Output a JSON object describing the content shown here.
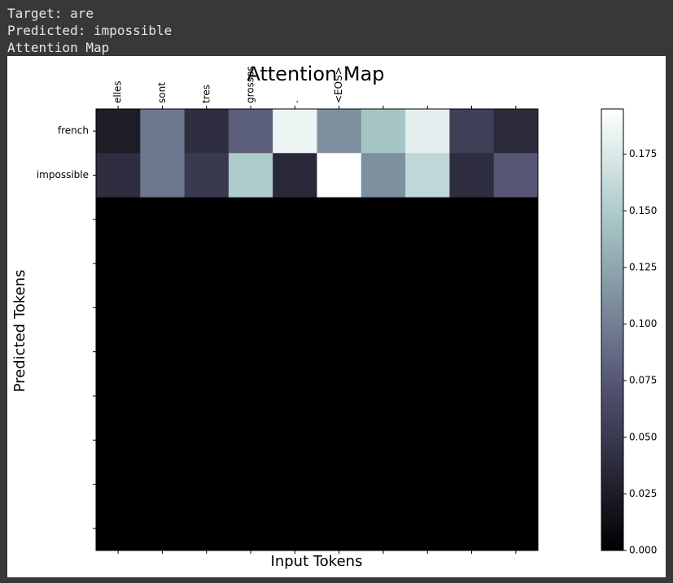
{
  "output": {
    "lines": [
      "Target: are",
      "Predicted: impossible",
      "Attention Map"
    ]
  },
  "chart_data": {
    "type": "heatmap",
    "title": "Attention Map",
    "x_label": "Input Tokens",
    "y_label": "Predicted Tokens",
    "x_categories": [
      "elles",
      "sont",
      "tres",
      "grosses",
      ".",
      "<EOS>",
      null,
      null,
      null,
      null
    ],
    "y_categories": [
      "french",
      "impossible",
      null,
      null,
      null,
      null,
      null,
      null,
      null,
      null
    ],
    "z": [
      [
        0.025,
        0.095,
        0.04,
        0.08,
        0.185,
        0.11,
        0.145,
        0.18,
        0.055,
        0.038
      ],
      [
        0.04,
        0.095,
        0.05,
        0.15,
        0.035,
        0.195,
        0.11,
        0.16,
        0.04,
        0.075
      ],
      [
        0,
        0,
        0,
        0,
        0,
        0,
        0,
        0,
        0,
        0
      ],
      [
        0,
        0,
        0,
        0,
        0,
        0,
        0,
        0,
        0,
        0
      ],
      [
        0,
        0,
        0,
        0,
        0,
        0,
        0,
        0,
        0,
        0
      ],
      [
        0,
        0,
        0,
        0,
        0,
        0,
        0,
        0,
        0,
        0
      ],
      [
        0,
        0,
        0,
        0,
        0,
        0,
        0,
        0,
        0,
        0
      ],
      [
        0,
        0,
        0,
        0,
        0,
        0,
        0,
        0,
        0,
        0
      ],
      [
        0,
        0,
        0,
        0,
        0,
        0,
        0,
        0,
        0,
        0
      ],
      [
        0,
        0,
        0,
        0,
        0,
        0,
        0,
        0,
        0,
        0
      ]
    ],
    "colormap": "bone",
    "clim": [
      0,
      0.195
    ],
    "cticks": [
      {
        "value": 0,
        "label": "0.000"
      },
      {
        "value": 0.025,
        "label": "0.025"
      },
      {
        "value": 0.05,
        "label": "0.050"
      },
      {
        "value": 0.075,
        "label": "0.075"
      },
      {
        "value": 0.1,
        "label": "0.100"
      },
      {
        "value": 0.125,
        "label": "0.125"
      },
      {
        "value": 0.15,
        "label": "0.150"
      },
      {
        "value": 0.175,
        "label": "0.175"
      }
    ]
  }
}
